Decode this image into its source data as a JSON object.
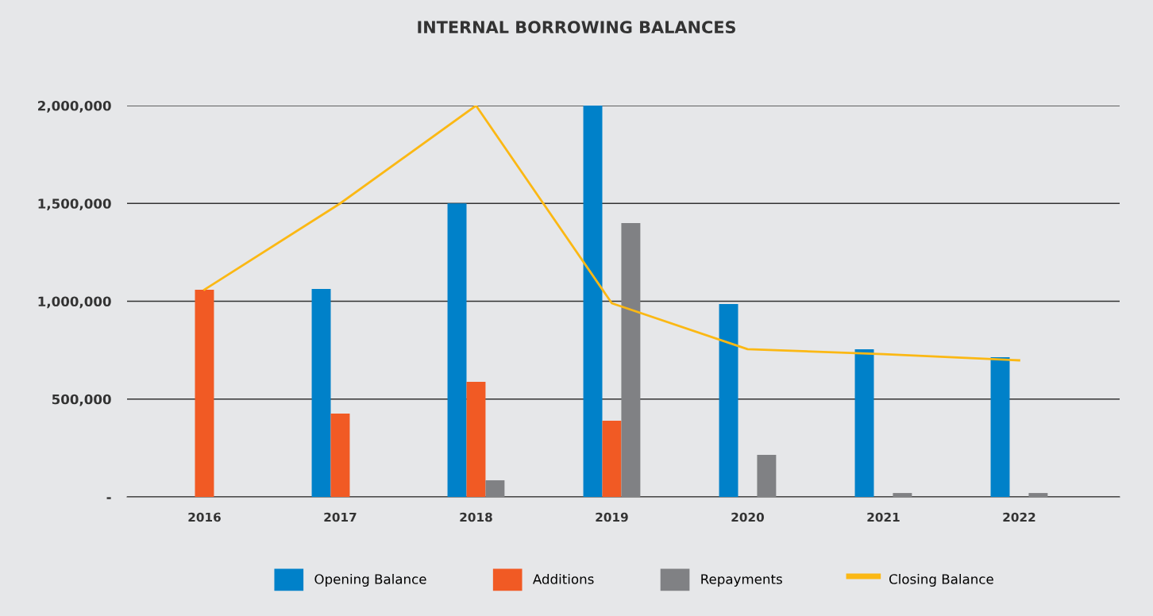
{
  "chart_data": {
    "type": "bar",
    "title": "INTERNAL BORROWING BALANCES",
    "categories": [
      "2016",
      "2017",
      "2018",
      "2019",
      "2020",
      "2021",
      "2022"
    ],
    "series": [
      {
        "name": "Opening Balance",
        "color": "#0081c9",
        "values": [
          null,
          1063000,
          1500000,
          2000000,
          986000,
          755000,
          714000
        ]
      },
      {
        "name": "Additions",
        "color": "#f15a24",
        "values": [
          1059000,
          426000,
          588000,
          389000,
          null,
          null,
          null
        ]
      },
      {
        "name": "Repayments",
        "color": "#808184",
        "values": [
          null,
          null,
          85000,
          1400000,
          215000,
          20000,
          20000
        ]
      },
      {
        "name": "Closing Balance",
        "type": "line",
        "color": "#fbb814",
        "values": [
          1059000,
          1500000,
          2000000,
          990000,
          755000,
          730000,
          698000
        ]
      }
    ],
    "ylim": [
      0,
      2000000
    ],
    "yticks": [
      {
        "value": 0,
        "label": "-"
      },
      {
        "value": 500000,
        "label": "500,000"
      },
      {
        "value": 1000000,
        "label": "1,000,000"
      },
      {
        "value": 1500000,
        "label": "1,500,000"
      },
      {
        "value": 2000000,
        "label": "2,000,000"
      }
    ],
    "grid": "y",
    "legend": "bottom"
  }
}
